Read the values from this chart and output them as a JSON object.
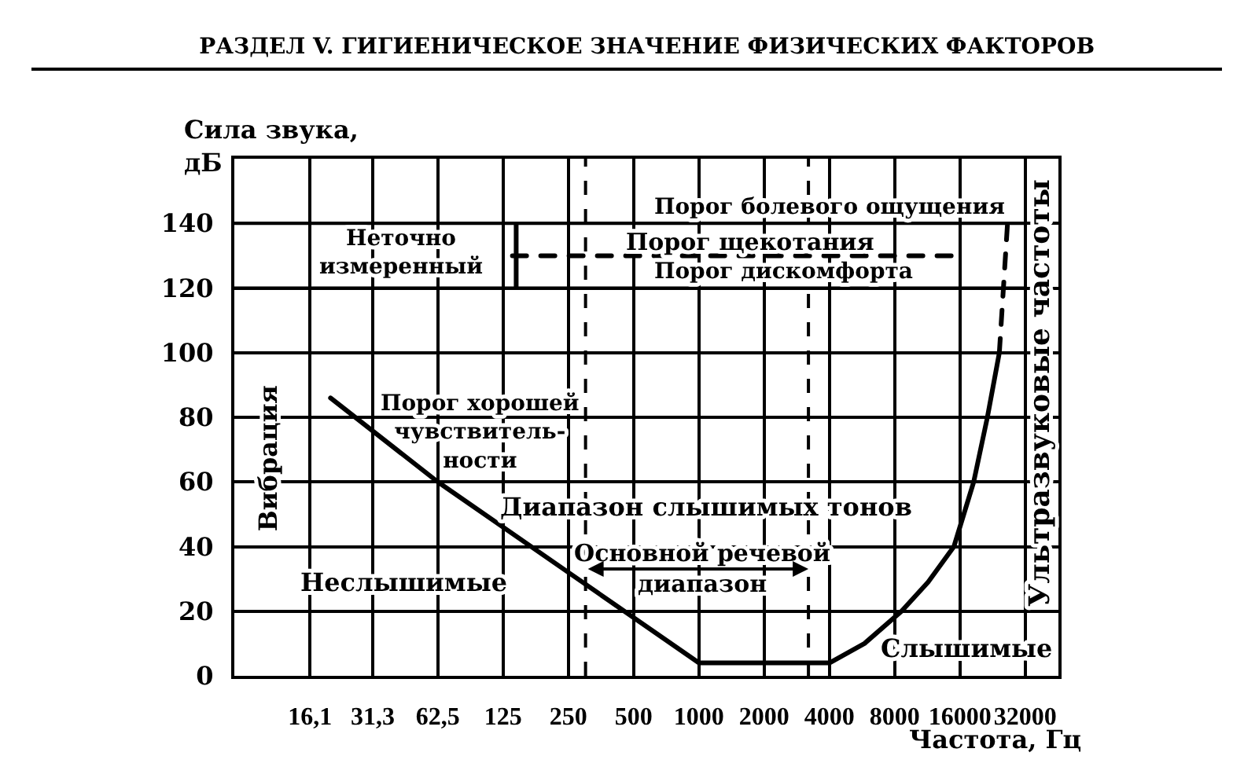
{
  "chart_data": {
    "type": "line",
    "title": "РАЗДЕЛ V. ГИГИЕНИЧЕСКОЕ ЗНАЧЕНИЕ ФИЗИЧЕСКИХ ФАКТОРОВ",
    "xlabel": "Частота, Гц",
    "ylabel": "Сила звука,\nдБ",
    "log": "x",
    "xlim": [
      7.2,
      45500
    ],
    "xticks": [
      {
        "value": 16.1,
        "label": "16,1"
      },
      {
        "value": 31.3,
        "label": "31,3"
      },
      {
        "value": 62.5,
        "label": "62,5"
      },
      125,
      250,
      500,
      1000,
      2000,
      4000,
      8000,
      16000,
      32000
    ],
    "ylim": [
      0,
      160
    ],
    "yticks": [
      0,
      20,
      40,
      60,
      80,
      100,
      120,
      140
    ],
    "grid": true,
    "marker": "none",
    "series": [
      {
        "color": "#000000",
        "x": [
          20,
          62.5,
          250,
          1000,
          4000,
          5800,
          8600,
          11400,
          15000,
          18500,
          21400,
          24300
        ],
        "values": [
          86,
          60,
          32,
          4,
          4,
          10,
          20,
          29,
          40,
          60,
          80,
          100
        ]
      },
      {
        "color": "#000000",
        "line_style": "dashed",
        "x": [
          24300,
          26500
        ],
        "values": [
          100,
          140
        ]
      },
      {
        "color": "#000000",
        "line_style": "dashed",
        "x": [
          138,
          16000
        ],
        "values": [
          130,
          130
        ]
      }
    ],
    "ref_lines": [
      {
        "axis": "y",
        "value": 140,
        "label": "Порог болевого ощущения"
      },
      {
        "axis": "y",
        "value": 120,
        "label": "Порог дискомфорта"
      },
      {
        "axis": "x",
        "value": 300,
        "line_style": "dashed"
      },
      {
        "axis": "x",
        "value": 3200,
        "line_style": "dashed"
      }
    ],
    "annotations": [
      "Неточно\nизмеренный",
      "Порог щекотания",
      "Порог хорошей\nчувствитель-\nности",
      "Диапазон слышимых тонов",
      "Основной речевой\nдиапазон",
      "Неслышимые",
      "Слышимые",
      "Вибрация",
      "Ультразвуковые частоты"
    ]
  }
}
